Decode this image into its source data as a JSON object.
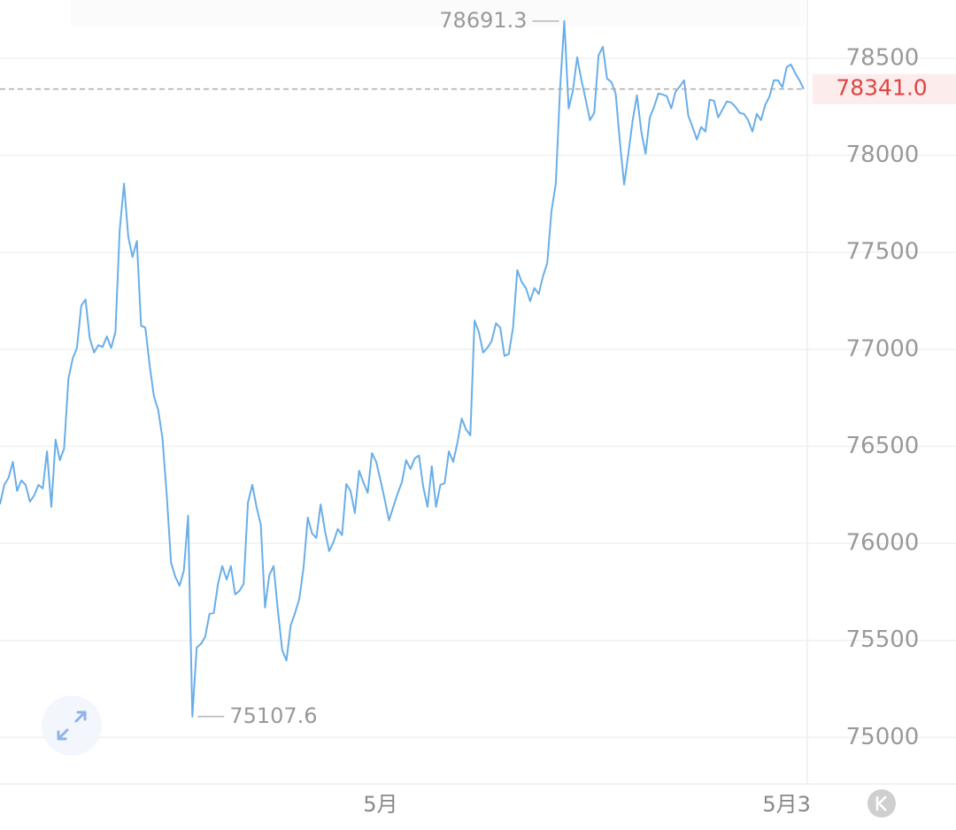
{
  "chart_data": {
    "type": "line",
    "categories": [
      null,
      null,
      null,
      null,
      null,
      null,
      null,
      null,
      null,
      null,
      null,
      null,
      null,
      null,
      null,
      null,
      null,
      null,
      null,
      null,
      null,
      null,
      null,
      null,
      null,
      null,
      null,
      null,
      null,
      null,
      null,
      null,
      null,
      null,
      null,
      null,
      null,
      null,
      null,
      null,
      null,
      null,
      null,
      null,
      null,
      null,
      null,
      null,
      null,
      null,
      null,
      null,
      null,
      null,
      null,
      null,
      null,
      null,
      null,
      null,
      null,
      null,
      null,
      null,
      null,
      null,
      null,
      null,
      null,
      null,
      null,
      null,
      null,
      null,
      null,
      null,
      null,
      null,
      null,
      null,
      null,
      null,
      null,
      null,
      null,
      null,
      null,
      null,
      null,
      "5月",
      null,
      null,
      null,
      null,
      null,
      null,
      null,
      null,
      null,
      null,
      null,
      null,
      null,
      null,
      null,
      null,
      null,
      null,
      null,
      null,
      null,
      null,
      null,
      null,
      null,
      null,
      null,
      null,
      null,
      null,
      null,
      null,
      null,
      null,
      null,
      null,
      null,
      null,
      null,
      null,
      null,
      null,
      null,
      null,
      null,
      null,
      null,
      null,
      null,
      null,
      null,
      null,
      null,
      null,
      null,
      null,
      null,
      null,
      null,
      null,
      null,
      null,
      null,
      null,
      null,
      null,
      null,
      null,
      null,
      null,
      null,
      null,
      null,
      null,
      null,
      null,
      null,
      null,
      null,
      null,
      null,
      null,
      null,
      null,
      null,
      null,
      null,
      null,
      null,
      null,
      null,
      null,
      null,
      null,
      "5月3",
      null,
      null,
      null,
      null
    ],
    "series": [
      {
        "color": "#6aaee8",
        "values": [
          76201,
          76301,
          76338,
          76420,
          76270,
          76324,
          76301,
          76215,
          76247,
          76301,
          76283,
          76474,
          76188,
          76534,
          76429,
          76488,
          76848,
          76952,
          77007,
          77225,
          77257,
          77057,
          76984,
          77021,
          77012,
          77066,
          77007,
          77089,
          77612,
          77854,
          77580,
          77476,
          77558,
          77121,
          77112,
          76920,
          76757,
          76688,
          76543,
          76247,
          75901,
          75828,
          75782,
          75860,
          76142,
          75107.6,
          75464,
          75482,
          75518,
          75637,
          75641,
          75792,
          75883,
          75814,
          75883,
          75737,
          75755,
          75792,
          76210,
          76301,
          76188,
          76097,
          75669,
          75837,
          75883,
          75655,
          75450,
          75396,
          75578,
          75641,
          75714,
          75874,
          76133,
          76051,
          76028,
          76201,
          76065,
          75960,
          76006,
          76074,
          76042,
          76306,
          76270,
          76156,
          76374,
          76315,
          76260,
          76465,
          76420,
          76324,
          76224,
          76119,
          76188,
          76256,
          76315,
          76429,
          76383,
          76438,
          76452,
          76292,
          76188,
          76397,
          76188,
          76301,
          76310,
          76474,
          76420,
          76520,
          76643,
          76588,
          76556,
          77148,
          77089,
          76984,
          77007,
          77043,
          77134,
          77112,
          76966,
          76975,
          77112,
          77408,
          77348,
          77316,
          77248,
          77316,
          77285,
          77376,
          77444,
          77712,
          77854,
          78340,
          78691.3,
          78241,
          78332,
          78505,
          78386,
          78286,
          78181,
          78218,
          78514,
          78559,
          78395,
          78377,
          78318,
          78068,
          77849,
          78013,
          78181,
          78309,
          78122,
          78008,
          78195,
          78250,
          78318,
          78313,
          78304,
          78241,
          78327,
          78354,
          78386,
          78204,
          78145,
          78081,
          78145,
          78122,
          78286,
          78281,
          78195,
          78236,
          78277,
          78272,
          78250,
          78218,
          78213,
          78181,
          78122,
          78213,
          78181,
          78259,
          78304,
          78386,
          78386,
          78350,
          78454,
          78468,
          78423,
          78386,
          78341
        ]
      }
    ],
    "ylim": [
      74760,
      78800
    ],
    "yticks": [
      75000,
      75500,
      76000,
      76500,
      77000,
      77500,
      78000,
      78500
    ],
    "grid": true,
    "current": {
      "value": 78341,
      "label": "78341.0"
    }
  }
}
